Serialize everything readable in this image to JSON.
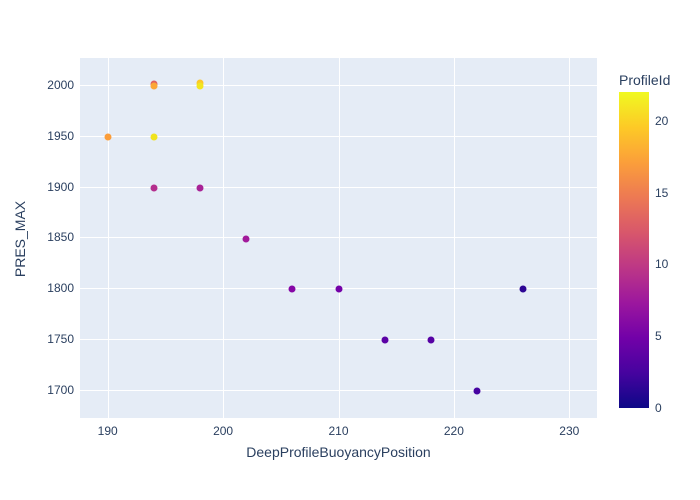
{
  "colors": {
    "paper_bg": "#ffffff",
    "plot_bg": "#e5ecf6",
    "grid": "#ffffff",
    "text": "#2a3f5f"
  },
  "chart_data": {
    "type": "scatter",
    "title": "",
    "xlabel": "DeepProfileBuoyancyPosition",
    "ylabel": "PRES_MAX",
    "x_ticks": [
      190,
      200,
      210,
      220,
      230
    ],
    "y_ticks": [
      1700,
      1750,
      1800,
      1850,
      1900,
      1950,
      2000
    ],
    "xlim": [
      187.6,
      232.4
    ],
    "ylim": [
      1672,
      2027
    ],
    "grid": true,
    "legend_position": "right-colorbar",
    "marker_size_px": 7,
    "points": [
      {
        "x": 190,
        "y": 1949,
        "profile_id": 17,
        "color": "#fb9d3a"
      },
      {
        "x": 194,
        "y": 2001,
        "profile_id": 13,
        "color": "#e0605e"
      },
      {
        "x": 194,
        "y": 1999,
        "profile_id": 18,
        "color": "#fca636"
      },
      {
        "x": 198,
        "y": 2002,
        "profile_id": 20,
        "color": "#fdc827"
      },
      {
        "x": 198,
        "y": 1999,
        "profile_id": 21,
        "color": "#f3e51e"
      },
      {
        "x": 194,
        "y": 1949,
        "profile_id": 21,
        "color": "#f0e31d"
      },
      {
        "x": 194,
        "y": 1899,
        "profile_id": 11,
        "color": "#b42e8d"
      },
      {
        "x": 198,
        "y": 1899,
        "profile_id": 10,
        "color": "#a82296"
      },
      {
        "x": 202,
        "y": 1849,
        "profile_id": 9,
        "color": "#a21a9b"
      },
      {
        "x": 206,
        "y": 1799,
        "profile_id": 7,
        "color": "#8606a6"
      },
      {
        "x": 210,
        "y": 1799,
        "profile_id": 6,
        "color": "#7401a8"
      },
      {
        "x": 214,
        "y": 1749,
        "profile_id": 4,
        "color": "#5b01a5"
      },
      {
        "x": 218,
        "y": 1749,
        "profile_id": 4,
        "color": "#5601a4"
      },
      {
        "x": 222,
        "y": 1699,
        "profile_id": 3,
        "color": "#4603a1"
      },
      {
        "x": 226,
        "y": 1799,
        "profile_id": 1,
        "color": "#2d0594"
      }
    ],
    "colorbar": {
      "title": "ProfileId",
      "cmin": 0,
      "cmax": 22,
      "ticks": [
        0,
        5,
        10,
        15,
        20
      ],
      "colorscale": [
        [
          0.0,
          "#0d0887"
        ],
        [
          0.111,
          "#46039f"
        ],
        [
          0.222,
          "#7201a8"
        ],
        [
          0.333,
          "#9c179e"
        ],
        [
          0.444,
          "#bd3786"
        ],
        [
          0.556,
          "#d8576b"
        ],
        [
          0.667,
          "#ed7953"
        ],
        [
          0.778,
          "#fb9f3a"
        ],
        [
          0.889,
          "#fdca26"
        ],
        [
          1.0,
          "#f0f921"
        ]
      ]
    }
  }
}
